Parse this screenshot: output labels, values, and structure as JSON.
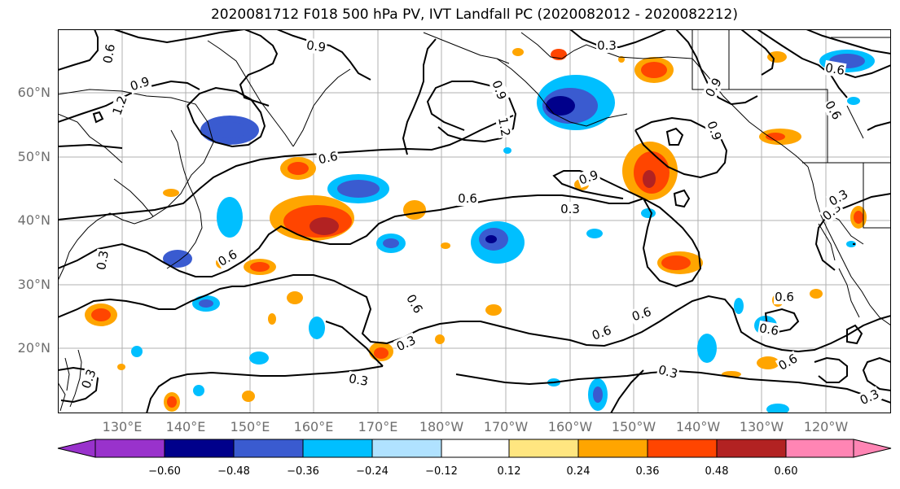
{
  "title": "2020081712 F018 500 hPa PV, IVT Landfall PC (2020082012 - 2020082212)",
  "lat_labels": [
    "60°N",
    "50°N",
    "40°N",
    "30°N",
    "20°N"
  ],
  "lon_labels": [
    "130°E",
    "140°E",
    "150°E",
    "160°E",
    "170°E",
    "180°W",
    "170°W",
    "160°W",
    "150°W",
    "140°W",
    "130°W",
    "120°W"
  ],
  "colorbar": {
    "ticks": [
      "−0.60",
      "−0.48",
      "−0.36",
      "−0.24",
      "−0.12",
      "0.12",
      "0.24",
      "0.36",
      "0.48",
      "0.60"
    ],
    "colors": [
      "#9932cc",
      "#00008b",
      "#3a5bd0",
      "#00bfff",
      "#b0e2ff",
      "#ffffff",
      "#ffe680",
      "#ffa500",
      "#ff4500",
      "#b22222",
      "#ff85b4"
    ]
  },
  "contour_labels": [
    "0.9",
    "0.3",
    "0.6",
    "0.9",
    "1.2",
    "0.9",
    "1.2",
    "0.9",
    "0.9",
    "0.6",
    "0.6",
    "0.9",
    "0.6",
    "0.3",
    "0.6",
    "0.3",
    "0.3",
    "0.6",
    "0.6",
    "0.6",
    "0.3",
    "0.3",
    "0.3",
    "0.6",
    "0.6",
    "0.3",
    "0.3",
    "0.6",
    "0.3",
    "0.6"
  ]
}
